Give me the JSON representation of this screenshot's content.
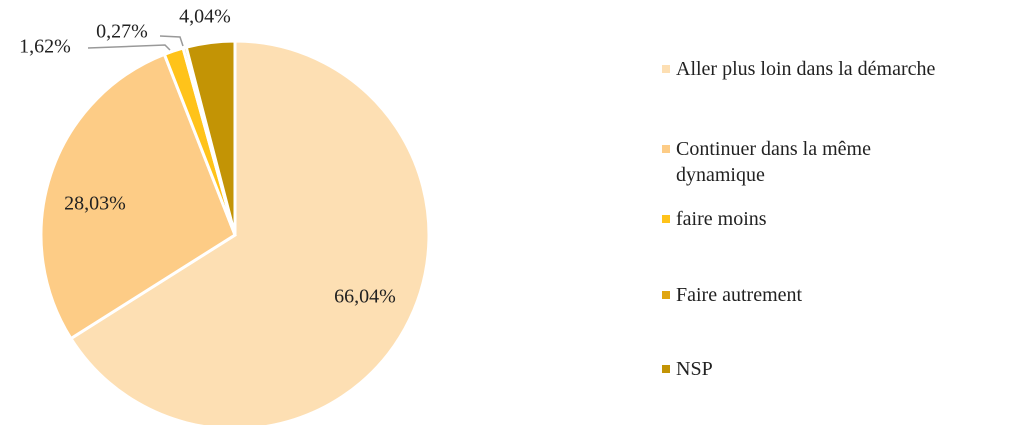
{
  "chart_data": {
    "type": "pie",
    "categories": [
      "Aller plus loin dans la démarche",
      "Continuer dans la même dynamique",
      "faire moins",
      "Faire autrement",
      "NSP"
    ],
    "values": [
      66.04,
      28.03,
      1.62,
      0.27,
      4.04
    ],
    "value_labels": [
      "66,04%",
      "28,03%",
      "1,62%",
      "0,27%",
      "4,04%"
    ],
    "colors": [
      "#FDDFB3",
      "#FDCC86",
      "#FFC31A",
      "#E0A612",
      "#C39405"
    ],
    "legend": "right"
  }
}
